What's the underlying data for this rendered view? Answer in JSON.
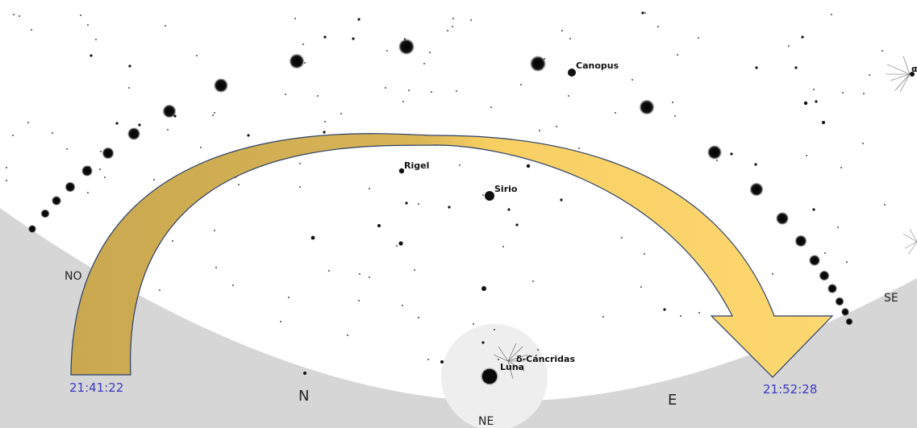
{
  "colors": {
    "sky": "#ffffff",
    "ground": "#d6d6d6",
    "moon_halo": "#ececec",
    "arrow_start": "#c9a850",
    "arrow_end": "#fdd870",
    "arrow_outline": "#2a3f6b",
    "time_text": "#3a3ac8",
    "star": "#111111"
  },
  "directions": {
    "no": "NO",
    "n": "N",
    "ne": "NE",
    "e": "E",
    "se": "SE"
  },
  "labels": {
    "canopus": "Canopus",
    "rigel": "Rigel",
    "sirio": "Sirio",
    "luna": "Luna",
    "radiant": "δ-Cáncridas",
    "alpha_partial": "α"
  },
  "times": {
    "start": "21:41:22",
    "end": "21:52:28"
  },
  "icons": {
    "moon": "moon-icon",
    "meteor_radiant": "meteor-burst-icon",
    "star": "star-icon"
  }
}
